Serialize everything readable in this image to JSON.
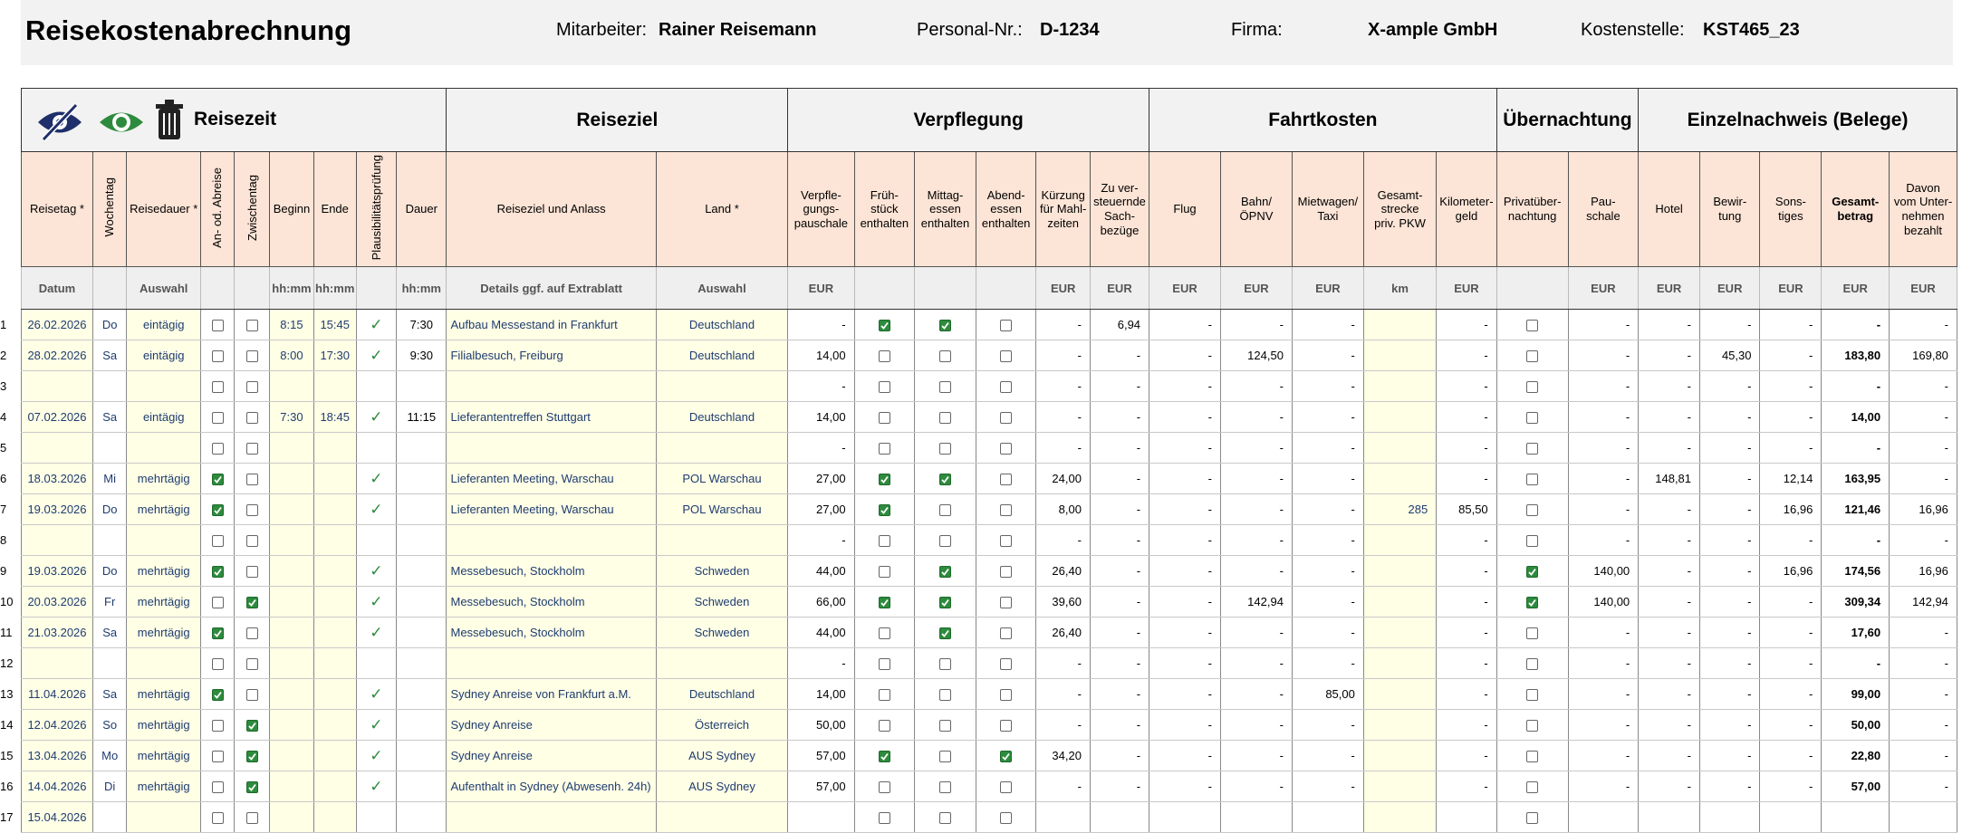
{
  "header": {
    "title": "Reisekostenabrechnung",
    "fields": [
      {
        "label": "Mitarbeiter:",
        "value": "Rainer Reisemann"
      },
      {
        "label": "Personal-Nr.:",
        "value": "D-1234"
      },
      {
        "label": "Firma:",
        "value": "X-ample GmbH"
      },
      {
        "label": "Kostenstelle:",
        "value": "KST465_23"
      }
    ]
  },
  "groups": [
    "Reisezeit",
    "Reiseziel",
    "Verpflegung",
    "Fahrtkosten",
    "Übernachtung",
    "Einzelnachweis (Belege)"
  ],
  "columns": [
    {
      "label": "Reisetag *",
      "unit": "Datum"
    },
    {
      "label": "Wochentag",
      "unit": null
    },
    {
      "label": "Reisedauer *",
      "unit": "Auswahl"
    },
    {
      "label": "An- od. Abreise",
      "unit": null
    },
    {
      "label": "Zwischentag",
      "unit": null
    },
    {
      "label": "Beginn",
      "unit": "hh:mm"
    },
    {
      "label": "Ende",
      "unit": "hh:mm"
    },
    {
      "label": "Plausibilitätsprüfung",
      "unit": null
    },
    {
      "label": "Dauer",
      "unit": "hh:mm"
    },
    {
      "label": "Reiseziel und Anlass",
      "unit": "Details ggf. auf Extrablatt"
    },
    {
      "label": "Land *",
      "unit": "Auswahl"
    },
    {
      "label": "Verpfle-\ngungs-\npauschale",
      "unit": "EUR"
    },
    {
      "label": "Früh-\nstück\nenthalten",
      "unit": null
    },
    {
      "label": "Mittag-\nessen\nenthalten",
      "unit": null
    },
    {
      "label": "Abend-\nessen\nenthalten",
      "unit": null
    },
    {
      "label": "Kürzung\nfür Mahl-\nzeiten",
      "unit": "EUR"
    },
    {
      "label": "Zu ver-\nsteuernde\nSach-\nbezüge",
      "unit": "EUR"
    },
    {
      "label": "Flug",
      "unit": "EUR"
    },
    {
      "label": "Bahn/\nÖPNV",
      "unit": "EUR"
    },
    {
      "label": "Mietwagen/\nTaxi",
      "unit": "EUR"
    },
    {
      "label": "Gesamt-\nstrecke\npriv. PKW",
      "unit": "km"
    },
    {
      "label": "Kilometer-\ngeld",
      "unit": "EUR"
    },
    {
      "label": "Privatüber-\nnachtung",
      "unit": null
    },
    {
      "label": "Pau-\nschale",
      "unit": "EUR"
    },
    {
      "label": "Hotel",
      "unit": "EUR"
    },
    {
      "label": "Bewir-\ntung",
      "unit": "EUR"
    },
    {
      "label": "Sons-\ntiges",
      "unit": "EUR"
    },
    {
      "label": "Gesamt-\nbetrag",
      "unit": "EUR"
    },
    {
      "label": "Davon\nvom Unter-\nnehmen\nbezahlt",
      "unit": "EUR"
    }
  ],
  "rows": [
    {
      "no": "1",
      "cells": [
        "26.02.2026",
        "Do",
        "eintägig",
        false,
        false,
        "8:15",
        "15:45",
        "✓",
        "7:30",
        "Aufbau Messestand in Frankfurt",
        "Deutschland",
        "-",
        true,
        true,
        false,
        "-",
        "6,94",
        "-",
        "-",
        "-",
        null,
        "-",
        false,
        "-",
        "-",
        "-",
        "-",
        "-",
        "-"
      ]
    },
    {
      "no": "2",
      "cells": [
        "28.02.2026",
        "Sa",
        "eintägig",
        false,
        false,
        "8:00",
        "17:30",
        "✓",
        "9:30",
        "Filialbesuch, Freiburg",
        "Deutschland",
        "14,00",
        false,
        false,
        false,
        "-",
        "-",
        "-",
        "124,50",
        "-",
        null,
        "-",
        false,
        "-",
        "-",
        "45,30",
        "-",
        "183,80",
        "169,80"
      ]
    },
    {
      "no": "3",
      "cells": [
        null,
        null,
        null,
        false,
        false,
        null,
        null,
        null,
        null,
        null,
        null,
        "-",
        false,
        false,
        false,
        "-",
        "-",
        "-",
        "-",
        "-",
        null,
        "-",
        false,
        "-",
        "-",
        "-",
        "-",
        "-",
        "-"
      ]
    },
    {
      "no": "4",
      "cells": [
        "07.02.2026",
        "Sa",
        "eintägig",
        false,
        false,
        "7:30",
        "18:45",
        "✓",
        "11:15",
        "Lieferantentreffen Stuttgart",
        "Deutschland",
        "14,00",
        false,
        false,
        false,
        "-",
        "-",
        "-",
        "-",
        "-",
        null,
        "-",
        false,
        "-",
        "-",
        "-",
        "-",
        "14,00",
        "-"
      ]
    },
    {
      "no": "5",
      "cells": [
        null,
        null,
        null,
        false,
        false,
        null,
        null,
        null,
        null,
        null,
        null,
        "-",
        false,
        false,
        false,
        "-",
        "-",
        "-",
        "-",
        "-",
        null,
        "-",
        false,
        "-",
        "-",
        "-",
        "-",
        "-",
        "-"
      ]
    },
    {
      "no": "6",
      "cells": [
        "18.03.2026",
        "Mi",
        "mehrtägig",
        true,
        false,
        null,
        null,
        "✓",
        null,
        "Lieferanten Meeting, Warschau",
        "POL Warschau",
        "27,00",
        true,
        true,
        false,
        "24,00",
        "-",
        "-",
        "-",
        "-",
        null,
        "-",
        false,
        "-",
        "148,81",
        "-",
        "12,14",
        "163,95",
        "-"
      ]
    },
    {
      "no": "7",
      "cells": [
        "19.03.2026",
        "Do",
        "mehrtägig",
        true,
        false,
        null,
        null,
        "✓",
        null,
        "Lieferanten Meeting, Warschau",
        "POL Warschau",
        "27,00",
        true,
        false,
        false,
        "8,00",
        "-",
        "-",
        "-",
        "-",
        "285",
        "85,50",
        false,
        "-",
        "-",
        "-",
        "16,96",
        "121,46",
        "16,96"
      ]
    },
    {
      "no": "8",
      "cells": [
        null,
        null,
        null,
        false,
        false,
        null,
        null,
        null,
        null,
        null,
        null,
        "-",
        false,
        false,
        false,
        "-",
        "-",
        "-",
        "-",
        "-",
        null,
        "-",
        false,
        "-",
        "-",
        "-",
        "-",
        "-",
        "-"
      ]
    },
    {
      "no": "9",
      "cells": [
        "19.03.2026",
        "Do",
        "mehrtägig",
        true,
        false,
        null,
        null,
        "✓",
        null,
        "Messebesuch, Stockholm",
        "Schweden",
        "44,00",
        false,
        true,
        false,
        "26,40",
        "-",
        "-",
        "-",
        "-",
        null,
        "-",
        true,
        "140,00",
        "-",
        "-",
        "16,96",
        "174,56",
        "16,96"
      ]
    },
    {
      "no": "10",
      "cells": [
        "20.03.2026",
        "Fr",
        "mehrtägig",
        false,
        true,
        null,
        null,
        "✓",
        null,
        "Messebesuch, Stockholm",
        "Schweden",
        "66,00",
        true,
        true,
        false,
        "39,60",
        "-",
        "-",
        "142,94",
        "-",
        null,
        "-",
        true,
        "140,00",
        "-",
        "-",
        "-",
        "309,34",
        "142,94"
      ]
    },
    {
      "no": "11",
      "cells": [
        "21.03.2026",
        "Sa",
        "mehrtägig",
        true,
        false,
        null,
        null,
        "✓",
        null,
        "Messebesuch, Stockholm",
        "Schweden",
        "44,00",
        false,
        true,
        false,
        "26,40",
        "-",
        "-",
        "-",
        "-",
        null,
        "-",
        false,
        "-",
        "-",
        "-",
        "-",
        "17,60",
        "-"
      ]
    },
    {
      "no": "12",
      "cells": [
        null,
        null,
        null,
        false,
        false,
        null,
        null,
        null,
        null,
        null,
        null,
        "-",
        false,
        false,
        false,
        "-",
        "-",
        "-",
        "-",
        "-",
        null,
        "-",
        false,
        "-",
        "-",
        "-",
        "-",
        "-",
        "-"
      ]
    },
    {
      "no": "13",
      "cells": [
        "11.04.2026",
        "Sa",
        "mehrtägig",
        true,
        false,
        null,
        null,
        "✓",
        null,
        "Sydney Anreise von Frankfurt a.M.",
        "Deutschland",
        "14,00",
        false,
        false,
        false,
        "-",
        "-",
        "-",
        "-",
        "85,00",
        null,
        "-",
        false,
        "-",
        "-",
        "-",
        "-",
        "99,00",
        "-"
      ]
    },
    {
      "no": "14",
      "cells": [
        "12.04.2026",
        "So",
        "mehrtägig",
        false,
        true,
        null,
        null,
        "✓",
        null,
        "Sydney Anreise",
        "Österreich",
        "50,00",
        false,
        false,
        false,
        "-",
        "-",
        "-",
        "-",
        "-",
        null,
        "-",
        false,
        "-",
        "-",
        "-",
        "-",
        "50,00",
        "-"
      ]
    },
    {
      "no": "15",
      "cells": [
        "13.04.2026",
        "Mo",
        "mehrtägig",
        false,
        true,
        null,
        null,
        "✓",
        null,
        "Sydney Anreise",
        "AUS Sydney",
        "57,00",
        true,
        false,
        true,
        "34,20",
        "-",
        "-",
        "-",
        "-",
        null,
        "-",
        false,
        "-",
        "-",
        "-",
        "-",
        "22,80",
        "-"
      ]
    },
    {
      "no": "16",
      "cells": [
        "14.04.2026",
        "Di",
        "mehrtägig",
        false,
        true,
        null,
        null,
        "✓",
        null,
        "Aufenthalt in Sydney (Abwesenh. 24h)",
        "AUS Sydney",
        "57,00",
        false,
        false,
        false,
        "-",
        "-",
        "-",
        "-",
        "-",
        null,
        "-",
        false,
        "-",
        "-",
        "-",
        "-",
        "57,00",
        "-"
      ]
    },
    {
      "no": "17",
      "cells": [
        "15.04.2026",
        null,
        null,
        false,
        false,
        null,
        null,
        null,
        null,
        null,
        null,
        null,
        false,
        false,
        false,
        null,
        null,
        null,
        null,
        null,
        null,
        null,
        false,
        null,
        null,
        null,
        null,
        null,
        null
      ]
    }
  ]
}
